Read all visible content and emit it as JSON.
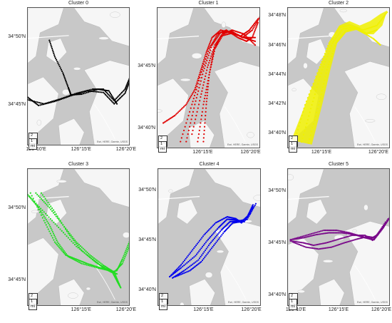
{
  "scale": {
    "km": "2 km",
    "mi": "1 mi"
  },
  "attribution": "Esri, HERE, Garmin, USGS",
  "colors": {
    "land": "#f6f6f6",
    "water": "#c8c8c8",
    "road": "#ffffff"
  },
  "chart_data": [
    {
      "type": "scatter",
      "title": "Cluster 0",
      "color": "#000000",
      "ylim": [
        34.7,
        34.87
      ],
      "xlim": [
        126.15,
        126.34
      ],
      "yticks": [
        {
          "v": 34.8333,
          "label": "34°50'N"
        },
        {
          "v": 34.75,
          "label": "34°45'N"
        }
      ],
      "xticks": [
        {
          "v": 126.1667,
          "label": "126°10'E"
        },
        {
          "v": 126.25,
          "label": "126°15'E"
        },
        {
          "v": 126.3333,
          "label": "126°20'E"
        }
      ],
      "tracks": [
        {
          "x": [
            126.15,
            126.17,
            126.2,
            126.23,
            126.26,
            126.29,
            126.31,
            126.33,
            126.34
          ],
          "y": [
            34.76,
            34.75,
            34.755,
            34.762,
            34.768,
            34.766,
            34.752,
            34.765,
            34.782
          ]
        },
        {
          "x": [
            126.15,
            126.18,
            126.21,
            126.24,
            126.27,
            126.29,
            126.31,
            126.33,
            126.34
          ],
          "y": [
            34.757,
            34.752,
            34.758,
            34.765,
            34.77,
            34.77,
            34.756,
            34.77,
            34.786
          ]
        },
        {
          "x": [
            126.19,
            126.2,
            126.215,
            126.225,
            126.23,
            126.25,
            126.28,
            126.3,
            126.315
          ],
          "y": [
            34.83,
            34.81,
            34.79,
            34.772,
            34.763,
            34.764,
            34.77,
            34.768,
            34.752
          ]
        }
      ]
    },
    {
      "type": "scatter",
      "title": "Cluster 1",
      "color": "#e00000",
      "ylim": [
        34.64,
        34.83
      ],
      "xlim": [
        126.17,
        126.35
      ],
      "yticks": [
        {
          "v": 34.75,
          "label": "34°45'N"
        },
        {
          "v": 34.6667,
          "label": "34°40'N"
        }
      ],
      "xticks": [
        {
          "v": 126.25,
          "label": "126°15'E"
        },
        {
          "v": 126.3333,
          "label": "126°20'E"
        }
      ],
      "tracks": [
        {
          "x": [
            126.21,
            126.23,
            126.245,
            126.26,
            126.275,
            126.29,
            126.31,
            126.325,
            126.335,
            126.345
          ],
          "y": [
            34.65,
            34.7,
            34.74,
            34.775,
            34.795,
            34.8,
            34.79,
            34.785,
            34.79,
            34.81
          ]
        },
        {
          "x": [
            126.22,
            126.235,
            126.25,
            126.265,
            126.28,
            126.3,
            126.315,
            126.33,
            126.345
          ],
          "y": [
            34.65,
            34.7,
            34.745,
            34.78,
            34.797,
            34.797,
            34.792,
            34.8,
            34.815
          ]
        },
        {
          "x": [
            126.24,
            126.25,
            126.26,
            126.27,
            126.285,
            126.3,
            126.32,
            126.34
          ],
          "y": [
            34.65,
            34.7,
            34.74,
            34.775,
            34.795,
            34.8,
            34.795,
            34.78
          ]
        },
        {
          "x": [
            126.25,
            126.255,
            126.26,
            126.268,
            126.28,
            126.3,
            126.32,
            126.34
          ],
          "y": [
            34.65,
            34.7,
            34.74,
            34.773,
            34.792,
            34.796,
            34.79,
            34.785
          ]
        },
        {
          "x": [
            126.18,
            126.2,
            126.22,
            126.235,
            126.245,
            126.255,
            126.265,
            126.28,
            126.3,
            126.32,
            126.34
          ],
          "y": [
            34.675,
            34.685,
            34.7,
            34.72,
            34.745,
            34.77,
            34.79,
            34.8,
            34.796,
            34.79,
            34.79
          ]
        },
        {
          "x": [
            126.23,
            126.245,
            126.257,
            126.27,
            126.285,
            126.3,
            126.318,
            126.335,
            126.35
          ],
          "y": [
            34.66,
            34.71,
            34.75,
            34.78,
            34.797,
            34.798,
            34.79,
            34.8,
            34.82
          ]
        }
      ]
    },
    {
      "type": "scatter",
      "title": "Cluster 2",
      "color": "#f0f000",
      "ylim": [
        34.65,
        34.81
      ],
      "xlim": [
        126.2,
        126.35
      ],
      "yticks": [
        {
          "v": 34.8,
          "label": "34°48'N"
        },
        {
          "v": 34.7667,
          "label": "34°46'N"
        },
        {
          "v": 34.7333,
          "label": "34°44'N"
        },
        {
          "v": 34.7,
          "label": "34°42'N"
        },
        {
          "v": 34.6667,
          "label": "34°40'N"
        }
      ],
      "xticks": [
        {
          "v": 126.25,
          "label": "126°15'E"
        },
        {
          "v": 126.3333,
          "label": "126°20'E"
        }
      ],
      "band": {
        "upper_x": [
          126.205,
          126.225,
          126.245,
          126.26,
          126.275,
          126.29,
          126.305,
          126.32,
          126.335,
          126.345
        ],
        "upper_y": [
          34.66,
          34.7,
          34.74,
          34.77,
          34.79,
          34.795,
          34.79,
          34.795,
          34.803,
          34.807
        ],
        "lower_x": [
          126.235,
          126.25,
          126.262,
          126.272,
          126.285,
          126.3,
          126.312,
          126.325,
          126.338
        ],
        "lower_y": [
          34.655,
          34.7,
          34.74,
          34.77,
          34.782,
          34.785,
          34.78,
          34.78,
          34.79
        ]
      },
      "tracks": [
        {
          "x": [
            126.21,
            126.225,
            126.245,
            126.26,
            126.275,
            126.29,
            126.31,
            126.33,
            126.345
          ],
          "y": [
            34.66,
            34.7,
            34.74,
            34.77,
            34.788,
            34.79,
            34.785,
            34.79,
            34.805
          ]
        },
        {
          "x": [
            126.22,
            126.235,
            126.25,
            126.265,
            126.28,
            126.295,
            126.31,
            126.325,
            126.335
          ],
          "y": [
            34.658,
            34.7,
            34.74,
            34.77,
            34.786,
            34.788,
            34.782,
            34.775,
            34.768
          ]
        },
        {
          "x": [
            126.23,
            126.245,
            126.257,
            126.27,
            126.285,
            126.3,
            126.315,
            126.33
          ],
          "y": [
            34.657,
            34.7,
            34.74,
            34.77,
            34.784,
            34.787,
            34.781,
            34.785
          ]
        }
      ]
    },
    {
      "type": "scatter",
      "title": "Cluster 3",
      "color": "#22dd22",
      "ylim": [
        34.72,
        34.88
      ],
      "xlim": [
        126.15,
        126.34
      ],
      "yticks": [
        {
          "v": 34.8333,
          "label": "34°50'N"
        },
        {
          "v": 34.75,
          "label": "34°45'N"
        }
      ],
      "xticks": [
        {
          "v": 126.25,
          "label": "126°15'E"
        },
        {
          "v": 126.3333,
          "label": "126°20'E"
        }
      ],
      "tracks": [
        {
          "x": [
            126.15,
            126.18,
            126.21,
            126.24,
            126.27,
            126.29,
            126.305,
            126.315,
            126.325,
            126.338
          ],
          "y": [
            34.85,
            34.83,
            34.81,
            34.79,
            34.775,
            34.765,
            34.76,
            34.762,
            34.775,
            34.795
          ]
        },
        {
          "x": [
            126.155,
            126.18,
            126.2,
            126.22,
            126.24,
            126.26,
            126.285,
            126.305,
            126.315,
            126.322
          ],
          "y": [
            34.852,
            34.82,
            34.795,
            34.78,
            34.775,
            34.77,
            34.765,
            34.762,
            34.75,
            34.742
          ]
        },
        {
          "x": [
            126.165,
            126.19,
            126.215,
            126.24,
            126.265,
            126.29,
            126.31,
            126.32
          ],
          "y": [
            34.852,
            34.835,
            34.815,
            34.795,
            34.78,
            34.768,
            34.76,
            34.745
          ]
        },
        {
          "x": [
            126.175,
            126.2,
            126.225,
            126.25,
            126.275,
            126.295,
            126.31,
            126.325,
            126.338
          ],
          "y": [
            34.852,
            34.83,
            34.805,
            34.785,
            34.772,
            34.764,
            34.76,
            34.77,
            34.79
          ]
        },
        {
          "x": [
            126.15,
            126.17,
            126.19,
            126.205,
            126.225,
            126.25,
            126.28,
            126.3,
            126.315
          ],
          "y": [
            34.85,
            34.835,
            34.815,
            34.795,
            34.778,
            34.77,
            34.765,
            34.762,
            34.758
          ]
        }
      ]
    },
    {
      "type": "scatter",
      "title": "Cluster 4",
      "color": "#0000ee",
      "ylim": [
        34.64,
        34.87
      ],
      "xlim": [
        126.17,
        126.35
      ],
      "yticks": [
        {
          "v": 34.8333,
          "label": "34°50'N"
        },
        {
          "v": 34.75,
          "label": "34°45'N"
        },
        {
          "v": 34.6667,
          "label": "34°40'N"
        }
      ],
      "xticks": [
        {
          "v": 126.25,
          "label": "126°15'E"
        },
        {
          "v": 126.3333,
          "label": "126°20'E"
        }
      ],
      "tracks": [
        {
          "x": [
            126.19,
            126.21,
            126.23,
            126.25,
            126.27,
            126.29,
            126.305,
            126.315,
            126.325,
            126.335
          ],
          "y": [
            34.69,
            34.71,
            34.735,
            34.76,
            34.78,
            34.79,
            34.787,
            34.78,
            34.79,
            34.81
          ]
        },
        {
          "x": [
            126.19,
            126.21,
            126.235,
            126.255,
            126.275,
            126.29,
            126.305,
            126.32,
            126.335
          ],
          "y": [
            34.69,
            34.705,
            34.725,
            34.75,
            34.772,
            34.786,
            34.785,
            34.782,
            34.806
          ]
        },
        {
          "x": [
            126.195,
            126.215,
            126.24,
            126.26,
            126.28,
            126.295,
            126.31,
            126.325,
            126.34
          ],
          "y": [
            34.688,
            34.7,
            34.718,
            34.745,
            34.768,
            34.782,
            34.783,
            34.786,
            34.812
          ]
        },
        {
          "x": [
            126.2,
            126.225,
            126.245,
            126.265,
            126.285,
            126.3,
            126.315,
            126.33
          ],
          "y": [
            34.69,
            34.7,
            34.715,
            34.74,
            34.765,
            34.78,
            34.782,
            34.795
          ]
        }
      ]
    },
    {
      "type": "scatter",
      "title": "Cluster 5",
      "color": "#7a0a8a",
      "ylim": [
        34.65,
        34.87
      ],
      "xlim": [
        126.15,
        126.35
      ],
      "yticks": [
        {
          "v": 34.8333,
          "label": "34°50'N"
        },
        {
          "v": 34.75,
          "label": "34°45'N"
        },
        {
          "v": 34.6667,
          "label": "34°40'N"
        }
      ],
      "xticks": [
        {
          "v": 126.1667,
          "label": "126°10'E"
        },
        {
          "v": 126.25,
          "label": "126°15'E"
        },
        {
          "v": 126.3333,
          "label": "126°20'E"
        }
      ],
      "tracks": [
        {
          "x": [
            126.155,
            126.18,
            126.2,
            126.225,
            126.25,
            126.275,
            126.3,
            126.315,
            126.33,
            126.345
          ],
          "y": [
            34.755,
            34.752,
            34.748,
            34.752,
            34.758,
            34.764,
            34.764,
            34.756,
            34.772,
            34.788
          ]
        },
        {
          "x": [
            126.155,
            126.18,
            126.205,
            126.23,
            126.255,
            126.28,
            126.3,
            126.318,
            126.335,
            126.348
          ],
          "y": [
            34.757,
            34.76,
            34.765,
            34.768,
            34.768,
            34.765,
            34.76,
            34.757,
            34.775,
            34.792
          ]
        },
        {
          "x": [
            126.16,
            126.185,
            126.21,
            126.235,
            126.26,
            126.285,
            126.305,
            126.32,
            126.34
          ],
          "y": [
            34.753,
            34.745,
            34.742,
            34.745,
            34.752,
            34.758,
            34.762,
            34.76,
            34.785
          ]
        },
        {
          "x": [
            126.16,
            126.19,
            126.22,
            126.245,
            126.27,
            126.295,
            126.31,
            126.325,
            126.345
          ],
          "y": [
            34.758,
            34.765,
            34.772,
            34.772,
            34.768,
            34.762,
            34.758,
            34.765,
            34.79
          ]
        }
      ]
    }
  ]
}
